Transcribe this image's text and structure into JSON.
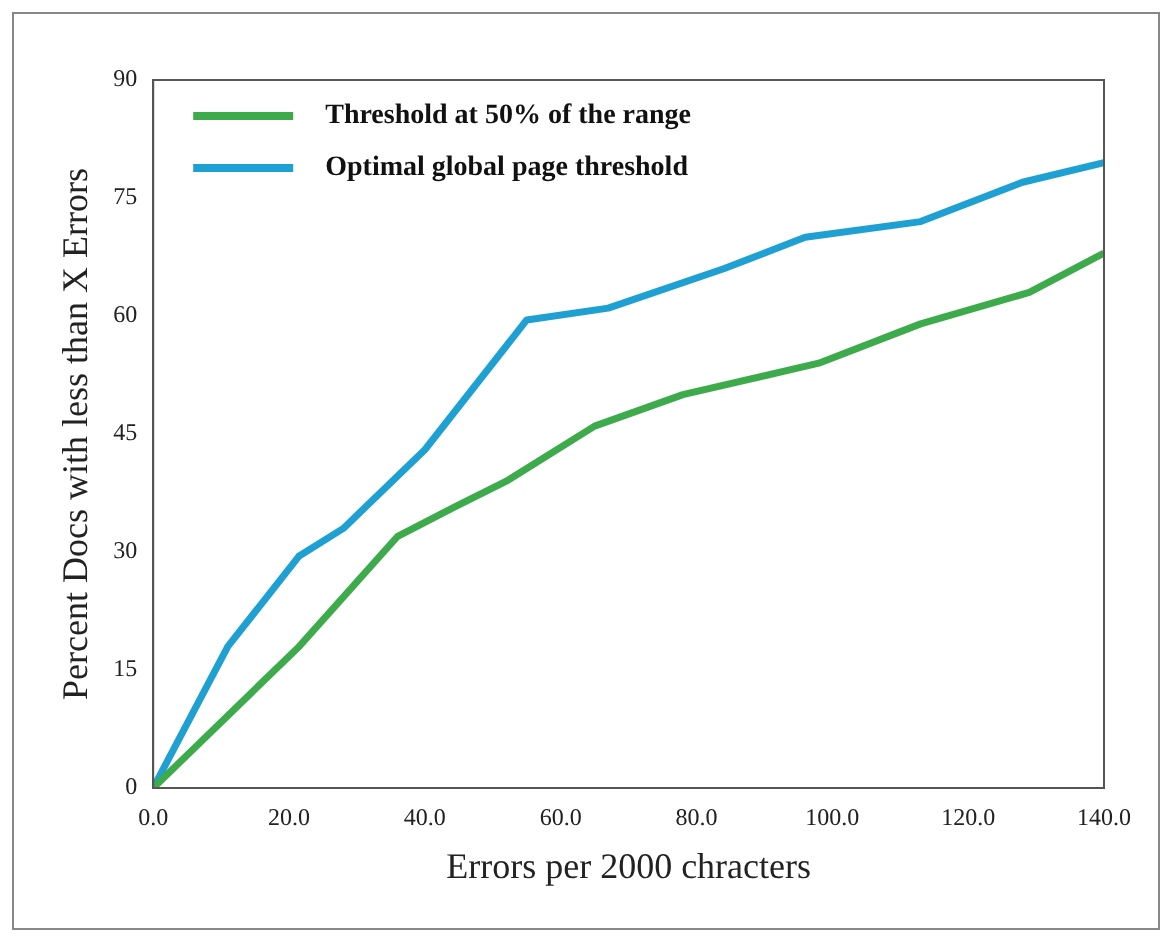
{
  "chart_data": {
    "type": "line",
    "xlabel": "Errors per 2000 chracters",
    "ylabel": "Percent Docs with less than X Errors",
    "xlim": [
      0,
      140
    ],
    "ylim": [
      0,
      90
    ],
    "xticks": [
      {
        "value": 0,
        "label": "0.0"
      },
      {
        "value": 20,
        "label": "20.0"
      },
      {
        "value": 40,
        "label": "40.0"
      },
      {
        "value": 60,
        "label": "60.0"
      },
      {
        "value": 80,
        "label": "80.0"
      },
      {
        "value": 100,
        "label": "100.0"
      },
      {
        "value": 120,
        "label": "120.0"
      },
      {
        "value": 140,
        "label": "140.0"
      }
    ],
    "yticks": [
      0,
      15,
      30,
      45,
      60,
      75,
      90
    ],
    "grid": false,
    "legend": "top left",
    "marker": "none",
    "line_style": "solid",
    "series": [
      {
        "name": "Threshold at 50% of the range",
        "color": "#3daa4c",
        "x": [
          0,
          21.5,
          36,
          45,
          52,
          65,
          78,
          98,
          113,
          129,
          140
        ],
        "values": [
          0,
          18,
          32,
          36,
          39,
          46,
          50,
          54,
          59,
          63,
          68
        ]
      },
      {
        "name": "Optimal global page threshold",
        "color": "#1fa0d2",
        "x": [
          0,
          11,
          21.5,
          28,
          40,
          55,
          67,
          84,
          96,
          113,
          128,
          140
        ],
        "values": [
          0,
          18,
          29.5,
          33,
          43,
          59.5,
          61,
          66,
          70,
          72,
          77,
          79.5
        ]
      }
    ]
  }
}
